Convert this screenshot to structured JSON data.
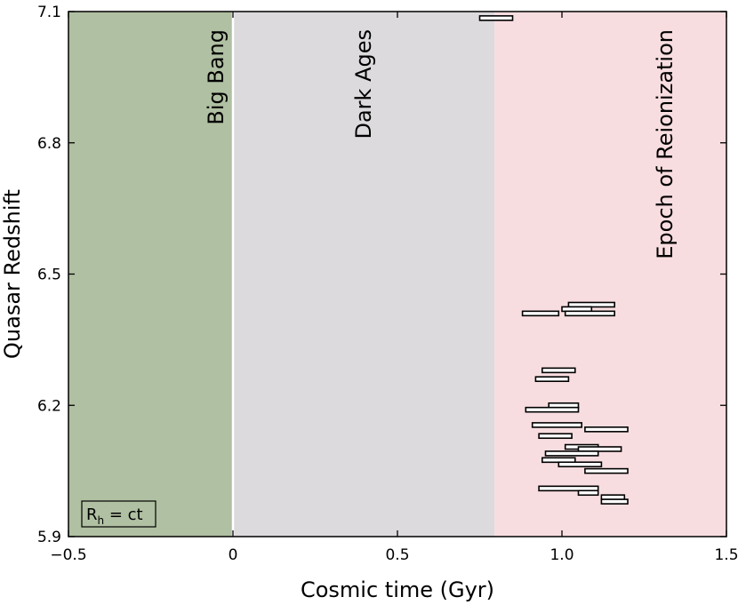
{
  "chart_data": {
    "type": "bar",
    "title": "",
    "xlabel": "Cosmic time (Gyr)",
    "ylabel": "Quasar Redshift",
    "xlim": [
      -0.5,
      1.5
    ],
    "ylim": [
      5.9,
      7.1
    ],
    "x_ticks": [
      -0.5,
      0,
      0.5,
      1.0,
      1.5
    ],
    "x_tick_labels": [
      "−0.5",
      "0",
      "0.5",
      "1.0",
      "1.5"
    ],
    "y_ticks": [
      5.9,
      6.2,
      6.5,
      6.8,
      7.1
    ],
    "y_tick_labels": [
      "5.9",
      "6.2",
      "6.5",
      "6.8",
      "7.1"
    ],
    "grid": false,
    "regions": [
      {
        "name": "Big Bang",
        "x_start": -0.5,
        "x_end": 0.0,
        "color": "#b0c0a2"
      },
      {
        "name": "Dark Ages",
        "x_start": 0.0,
        "x_end": 0.795,
        "color": "#dcdadd"
      },
      {
        "name": "Epoch of Reionization",
        "x_start": 0.795,
        "x_end": 1.5,
        "color": "#f8dde0"
      }
    ],
    "era_labels": {
      "big_bang": "Big Bang",
      "dark_ages": "Dark Ages",
      "reionization": "Epoch of Reionization"
    },
    "model_label": {
      "base": "R",
      "sub": "h",
      "rest": " = ct"
    },
    "intervals": [
      {
        "z": 7.085,
        "t_min": 0.75,
        "t_max": 0.85
      },
      {
        "z": 6.43,
        "t_min": 1.02,
        "t_max": 1.16
      },
      {
        "z": 6.42,
        "t_min": 1.0,
        "t_max": 1.09
      },
      {
        "z": 6.41,
        "t_min": 0.88,
        "t_max": 0.99
      },
      {
        "z": 6.41,
        "t_min": 1.01,
        "t_max": 1.16
      },
      {
        "z": 6.28,
        "t_min": 0.94,
        "t_max": 1.04
      },
      {
        "z": 6.26,
        "t_min": 0.92,
        "t_max": 1.02
      },
      {
        "z": 6.2,
        "t_min": 0.96,
        "t_max": 1.05
      },
      {
        "z": 6.19,
        "t_min": 0.89,
        "t_max": 1.05
      },
      {
        "z": 6.155,
        "t_min": 0.91,
        "t_max": 1.06
      },
      {
        "z": 6.145,
        "t_min": 1.07,
        "t_max": 1.2
      },
      {
        "z": 6.13,
        "t_min": 0.93,
        "t_max": 1.03
      },
      {
        "z": 6.105,
        "t_min": 1.01,
        "t_max": 1.11
      },
      {
        "z": 6.1,
        "t_min": 1.05,
        "t_max": 1.18
      },
      {
        "z": 6.09,
        "t_min": 0.95,
        "t_max": 1.11
      },
      {
        "z": 6.075,
        "t_min": 0.94,
        "t_max": 1.04
      },
      {
        "z": 6.065,
        "t_min": 0.99,
        "t_max": 1.12
      },
      {
        "z": 6.05,
        "t_min": 1.07,
        "t_max": 1.2
      },
      {
        "z": 6.01,
        "t_min": 0.93,
        "t_max": 1.11
      },
      {
        "z": 6.0,
        "t_min": 1.05,
        "t_max": 1.11
      },
      {
        "z": 5.99,
        "t_min": 1.12,
        "t_max": 1.19
      },
      {
        "z": 5.98,
        "t_min": 1.12,
        "t_max": 1.2
      }
    ]
  }
}
